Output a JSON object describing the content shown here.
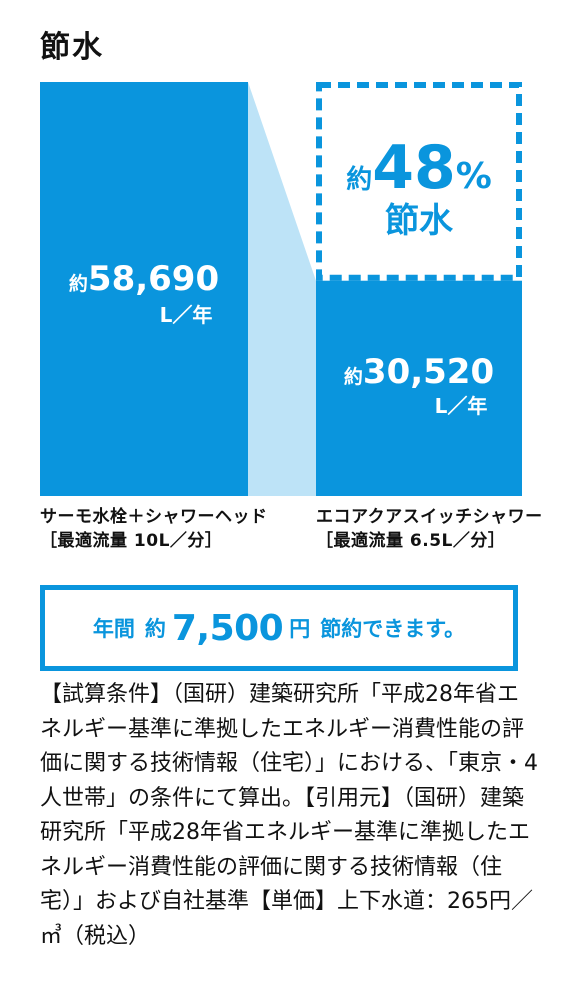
{
  "page_title": "節水",
  "chart_data": {
    "type": "bar",
    "categories": [
      {
        "name": "サーモ水栓＋シャワーヘッド",
        "spec": "［最適流量 10L／分］"
      },
      {
        "name": "エコアクアスイッチシャワー",
        "spec": "［最適流量 6.5L／分］"
      }
    ],
    "values": [
      58690,
      30520
    ],
    "value_labels": [
      {
        "prefix": "約",
        "number": "58,690",
        "unit": "L／年"
      },
      {
        "prefix": "約",
        "number": "30,520",
        "unit": "L／年"
      }
    ],
    "ylim": [
      0,
      58690
    ],
    "callout": {
      "prefix": "約",
      "percent": "48%",
      "label": "節水"
    },
    "colors": {
      "bar": "#0a95dd",
      "connector": "#bde3f7",
      "accent": "#0a95dd"
    }
  },
  "banner": {
    "label1": "年間",
    "label2": "約",
    "amount": "7,500",
    "unit": "円",
    "label3": "節約できます。"
  },
  "notes": "【試算条件】（国研）建築研究所「平成28年省エネルギー基準に準拠したエネルギー消費性能の評価に関する技術情報（住宅）」における、「東京・4人世帯」の条件にて算出。【引用元】（国研）建築研究所「平成28年省エネルギー基準に準拠したエネルギー消費性能の評価に関する技術情報（住宅）」および自社基準【単価】上下水道：265円／㎥（税込）"
}
